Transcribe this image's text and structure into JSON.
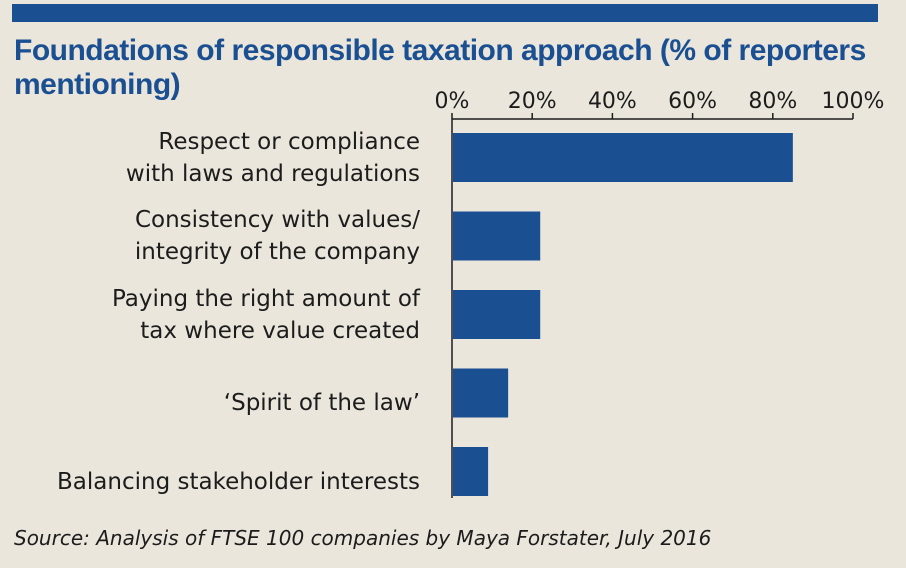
{
  "colors": {
    "bar": "#1a4f92",
    "title": "#1a4f92",
    "axis": "#1c1c1c",
    "background": "#ebe6dc"
  },
  "title_lines": [
    "Foundations of responsible taxation approach (% of reporters",
    "mentioning)"
  ],
  "source": "Source: Analysis of FTSE 100 companies by Maya Forstater, July 2016",
  "chart_data": {
    "type": "bar",
    "orientation": "horizontal",
    "title": "Foundations of responsible taxation approach (% of reporters mentioning)",
    "categories": [
      [
        "Respect or compliance",
        "with laws and regulations"
      ],
      [
        "Consistency with values/",
        "integrity of the company"
      ],
      [
        "Paying the right amount of",
        "tax where value created"
      ],
      [
        "‘Spirit of the law’"
      ],
      [
        "Balancing stakeholder interests"
      ]
    ],
    "values": [
      85,
      22,
      22,
      14,
      9
    ],
    "xlim": [
      0,
      100
    ],
    "xticks": [
      0,
      20,
      40,
      60,
      80,
      100
    ],
    "xtick_labels": [
      "0%",
      "20%",
      "40%",
      "60%",
      "80%",
      "100%"
    ],
    "xlabel": "",
    "ylabel": "",
    "axis_position": "top",
    "grid": false,
    "legend": "none"
  }
}
